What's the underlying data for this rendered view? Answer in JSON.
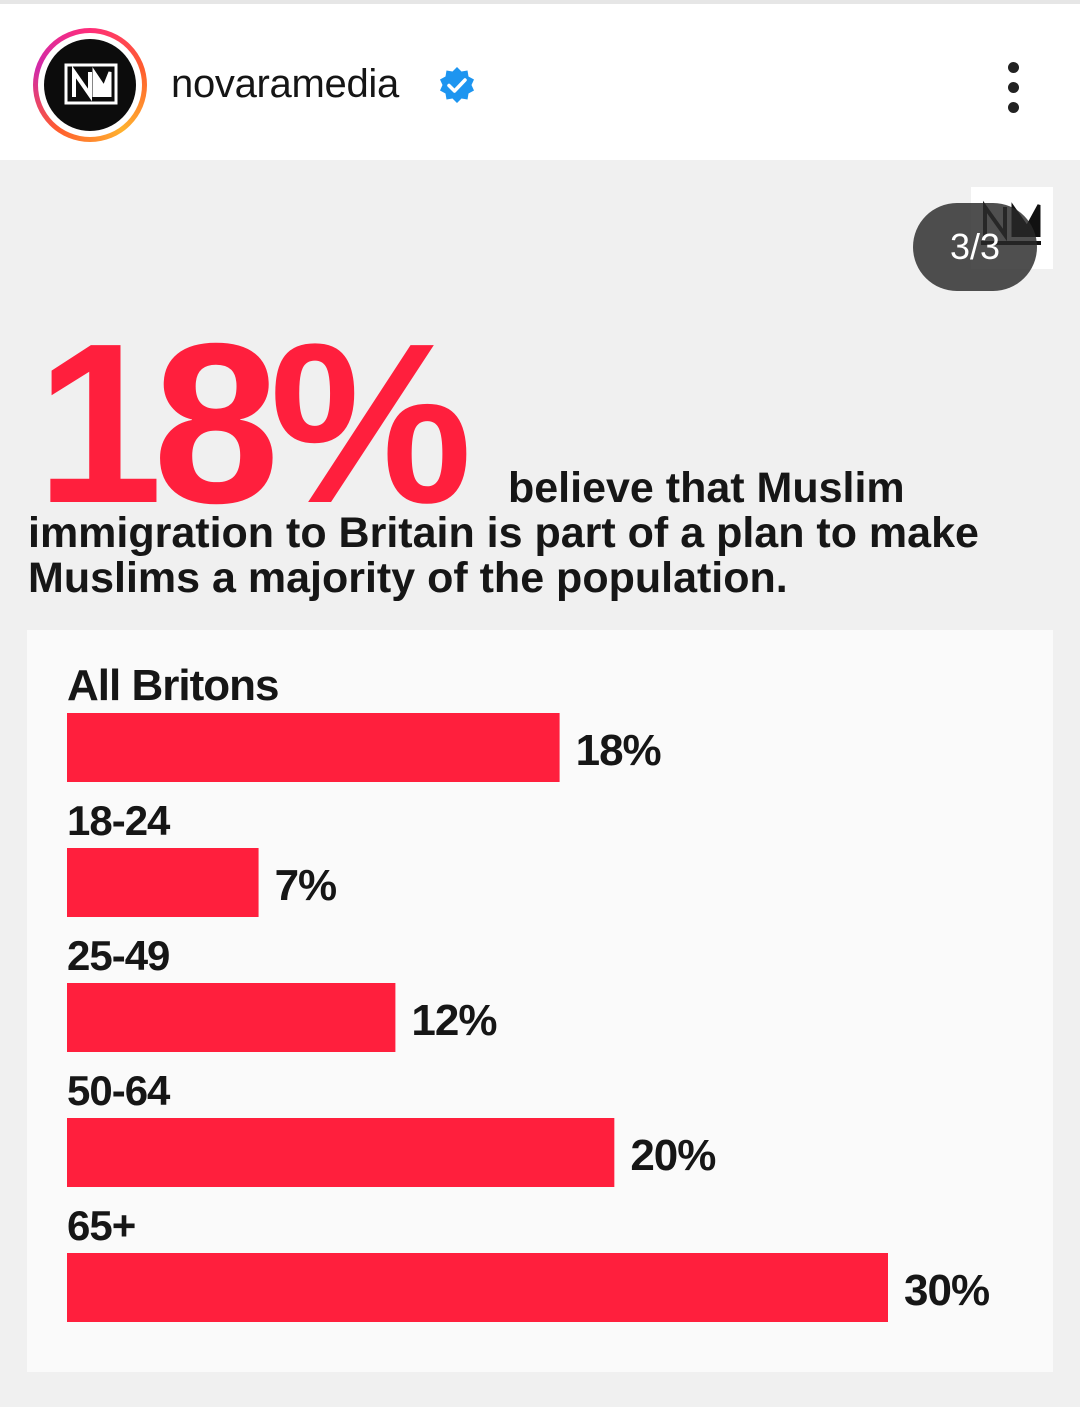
{
  "header": {
    "username": "novaramedia",
    "avatar_icon": "novara-logo-icon",
    "verified_icon": "verified-badge-icon",
    "more_icon": "more-options-icon"
  },
  "post": {
    "slide_counter": "3/3",
    "big_stat": "18%",
    "headline_line1": "believe that Muslim",
    "headline_rest": "immigration to Britain is part of a plan to make Muslims a majority of the population.",
    "accent_color": "#ff1f3d"
  },
  "chart_data": {
    "type": "bar",
    "orientation": "horizontal",
    "categories": [
      "All Britons",
      "18-24",
      "25-49",
      "50-64",
      "65+"
    ],
    "values": [
      18,
      7,
      12,
      20,
      30
    ],
    "value_labels": [
      "18%",
      "7%",
      "12%",
      "20%",
      "30%"
    ],
    "xlim": [
      0,
      30
    ],
    "grid": false,
    "bar_color": "#ff1f3d"
  }
}
